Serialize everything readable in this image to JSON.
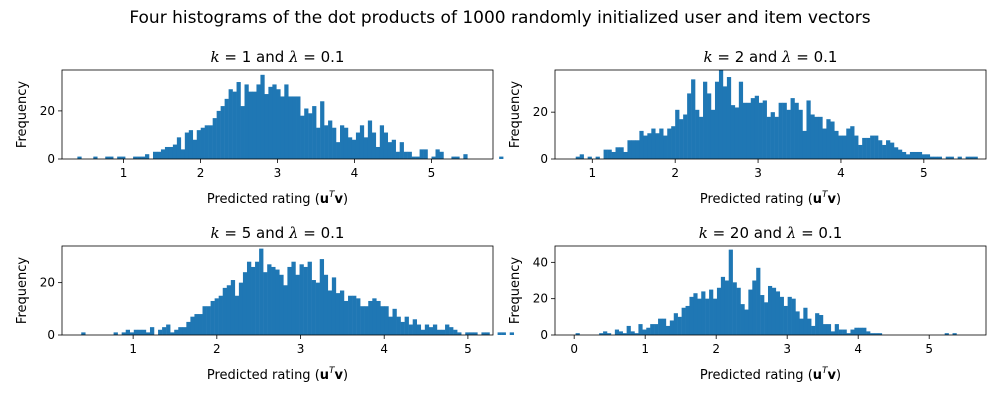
{
  "figure": {
    "title": "Four histograms of the dot products of 1000 randomly initialized user and item vectors"
  },
  "chart_data": [
    {
      "type": "bar",
      "title": "k = 1 and λ = 0.1",
      "title_parts": [
        "k",
        "= 1 and",
        "λ",
        "= 0.1"
      ],
      "xlabel_parts": [
        "Predicted rating (",
        "u",
        "T",
        "v",
        ")"
      ],
      "ylabel": "Frequency",
      "color": "#1f77b4",
      "xlim": [
        0.2,
        5.8
      ],
      "ylim": [
        0,
        37
      ],
      "xticks": [
        1,
        2,
        3,
        4,
        5
      ],
      "yticks": [
        0,
        20
      ],
      "bin_start": 0.4,
      "bin_width": 0.0517,
      "values": [
        1,
        0,
        0,
        0,
        1,
        0,
        0,
        1,
        1,
        0,
        1,
        1,
        0,
        0,
        1,
        1,
        1,
        2,
        0,
        3,
        3,
        4,
        5,
        5,
        6,
        9,
        4,
        11,
        12,
        8,
        12,
        13,
        14,
        14,
        17,
        20,
        22,
        25,
        29,
        28,
        32,
        22,
        31,
        28,
        28,
        31,
        35,
        27,
        30,
        31,
        29,
        26,
        31,
        26,
        26,
        26,
        18,
        21,
        19,
        22,
        13,
        24,
        14,
        16,
        13,
        7,
        14,
        13,
        9,
        8,
        11,
        14,
        9,
        16,
        11,
        5,
        14,
        11,
        7,
        8,
        3,
        7,
        3,
        3,
        1,
        1,
        4,
        4,
        0,
        1,
        4,
        3,
        0,
        0,
        1,
        1,
        0,
        2,
        0,
        0,
        0,
        0,
        0,
        0,
        0,
        0,
        1,
        0,
        0,
        0,
        0,
        0,
        0,
        0,
        0,
        0,
        0,
        0,
        0,
        0,
        0,
        0,
        0,
        0,
        0,
        0,
        0,
        0,
        0,
        0,
        0,
        0,
        0,
        0,
        0,
        0,
        0,
        0,
        1,
        0,
        0,
        0,
        0,
        0,
        0,
        0,
        0,
        0,
        0,
        0,
        0,
        0,
        0,
        0,
        0,
        0,
        0,
        0,
        0,
        0,
        0,
        0,
        0,
        0,
        0,
        0,
        1
      ]
    },
    {
      "type": "bar",
      "title": "k = 2 and λ = 0.1",
      "title_parts": [
        "k",
        "= 2 and",
        "λ",
        "= 0.1"
      ],
      "xlabel_parts": [
        "Predicted rating (",
        "u",
        "T",
        "v",
        ")"
      ],
      "ylabel": "Frequency",
      "color": "#1f77b4",
      "xlim": [
        0.55,
        5.75
      ],
      "ylim": [
        0,
        38
      ],
      "xticks": [
        1,
        2,
        3,
        4,
        5
      ],
      "yticks": [
        0,
        20
      ],
      "bin_start": 0.8,
      "bin_width": 0.048,
      "values": [
        1,
        2,
        0,
        1,
        0,
        1,
        0,
        4,
        4,
        3,
        5,
        5,
        3,
        8,
        8,
        8,
        12,
        10,
        11,
        13,
        11,
        13,
        10,
        13,
        14,
        21,
        17,
        19,
        28,
        34,
        21,
        18,
        33,
        28,
        21,
        33,
        38,
        31,
        35,
        23,
        22,
        33,
        24,
        24,
        26,
        27,
        24,
        25,
        18,
        20,
        18,
        24,
        24,
        21,
        26,
        24,
        21,
        12,
        25,
        19,
        18,
        18,
        13,
        17,
        16,
        12,
        10,
        10,
        13,
        14,
        10,
        6,
        9,
        9,
        10,
        10,
        8,
        6,
        8,
        7,
        5,
        4,
        3,
        2,
        3,
        3,
        3,
        2,
        2,
        1,
        1,
        1,
        0,
        1,
        1,
        0,
        1,
        0,
        1,
        1,
        1,
        0,
        0,
        0,
        0,
        0,
        0,
        0,
        0,
        0,
        0,
        0,
        0,
        0,
        0,
        0,
        0,
        0,
        0,
        0,
        0,
        0,
        0,
        0,
        0,
        0,
        0,
        0,
        0,
        0,
        0,
        0,
        0,
        0,
        0,
        0,
        0,
        0,
        0,
        0,
        0,
        0,
        0,
        0,
        1,
        0,
        0,
        0,
        0,
        0,
        0,
        0,
        0,
        0,
        0,
        0,
        0,
        1
      ]
    },
    {
      "type": "bar",
      "title": "k = 5 and λ = 0.1",
      "title_parts": [
        "k",
        "= 5 and",
        "λ",
        "= 0.1"
      ],
      "xlabel_parts": [
        "Predicted rating (",
        "u",
        "T",
        "v",
        ")"
      ],
      "ylabel": "Frequency",
      "color": "#1f77b4",
      "xlim": [
        0.15,
        5.3
      ],
      "ylim": [
        0,
        34
      ],
      "xticks": [
        1,
        2,
        3,
        4,
        5
      ],
      "yticks": [
        0,
        20
      ],
      "bin_start": 0.38,
      "bin_width": 0.0483,
      "values": [
        1,
        0,
        0,
        0,
        0,
        0,
        0,
        0,
        1,
        0,
        1,
        2,
        1,
        2,
        2,
        2,
        1,
        3,
        0,
        2,
        3,
        4,
        1,
        2,
        3,
        3,
        5,
        7,
        8,
        8,
        11,
        11,
        13,
        14,
        15,
        18,
        19,
        21,
        15,
        20,
        24,
        28,
        26,
        28,
        33,
        24,
        27,
        26,
        25,
        23,
        19,
        26,
        28,
        23,
        27,
        26,
        28,
        21,
        20,
        29,
        23,
        17,
        22,
        16,
        17,
        13,
        15,
        15,
        14,
        11,
        11,
        13,
        14,
        13,
        11,
        11,
        7,
        10,
        7,
        5,
        7,
        4,
        6,
        4,
        2,
        4,
        3,
        4,
        2,
        2,
        4,
        3,
        2,
        1,
        0,
        1,
        1,
        1,
        0,
        1,
        1,
        0,
        0,
        1,
        1,
        0,
        1
      ]
    },
    {
      "type": "bar",
      "title": "k = 20 and λ = 0.1",
      "title_parts": [
        "k",
        "= 20 and",
        "λ",
        "= 0.1"
      ],
      "xlabel_parts": [
        "Predicted rating (",
        "u",
        "T",
        "v",
        ")"
      ],
      "ylabel": "Frequency",
      "color": "#1f77b4",
      "xlim": [
        -0.27,
        5.8
      ],
      "ylim": [
        0,
        49
      ],
      "xticks": [
        0,
        1,
        2,
        3,
        4,
        5
      ],
      "yticks": [
        0,
        20,
        40
      ],
      "bin_start": 0.02,
      "bin_width": 0.0553,
      "values": [
        1,
        0,
        0,
        0,
        0,
        0,
        1,
        2,
        1,
        0,
        3,
        2,
        1,
        5,
        2,
        1,
        6,
        3,
        4,
        6,
        6,
        9,
        9,
        5,
        8,
        12,
        10,
        15,
        16,
        21,
        23,
        20,
        24,
        20,
        25,
        20,
        26,
        32,
        30,
        47,
        29,
        26,
        17,
        14,
        25,
        30,
        37,
        22,
        18,
        27,
        26,
        24,
        21,
        16,
        21,
        20,
        13,
        9,
        15,
        9,
        5,
        12,
        11,
        6,
        6,
        2,
        6,
        3,
        3,
        1,
        3,
        4,
        4,
        4,
        2,
        1,
        1,
        1,
        0,
        0,
        0,
        0,
        0,
        0,
        0,
        0,
        0,
        0,
        0,
        0,
        0,
        0,
        0,
        0,
        1,
        0,
        1
      ]
    }
  ]
}
